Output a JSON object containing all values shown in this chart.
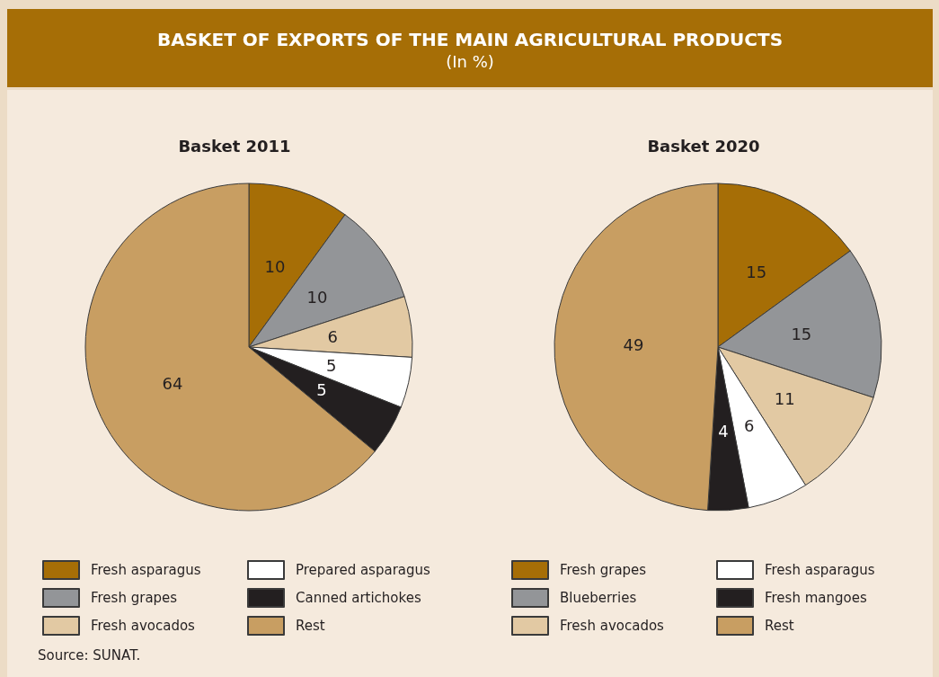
{
  "chart_data": [
    {
      "type": "other",
      "title": "BASKET OF EXPORTS OF THE MAIN AGRICULTURAL PRODUCTS",
      "subtitle": "(In %)",
      "annotations": [
        "Source: SUNAT."
      ]
    },
    {
      "type": "pie",
      "title": "Basket 2011",
      "categories": [
        "Fresh asparagus",
        "Fresh grapes",
        "Fresh avocados",
        "Prepared asparagus",
        "Canned artichokes",
        "Rest"
      ],
      "values": [
        10,
        10,
        6,
        5,
        5,
        64
      ],
      "colors": [
        "#a66e06",
        "#939598",
        "#e2c9a3",
        "#ffffff",
        "#231f20",
        "#c89e62"
      ],
      "data_labels": true,
      "legend": "bottom"
    },
    {
      "type": "pie",
      "title": "Basket 2020",
      "categories": [
        "Fresh grapes",
        "Blueberries",
        "Fresh avocados",
        "Fresh asparagus",
        "Fresh mangoes",
        "Rest"
      ],
      "values": [
        15,
        15,
        11,
        6,
        4,
        49
      ],
      "colors": [
        "#a66e06",
        "#939598",
        "#e2c9a3",
        "#ffffff",
        "#231f20",
        "#c89e62"
      ],
      "data_labels": true,
      "legend": "bottom"
    }
  ]
}
